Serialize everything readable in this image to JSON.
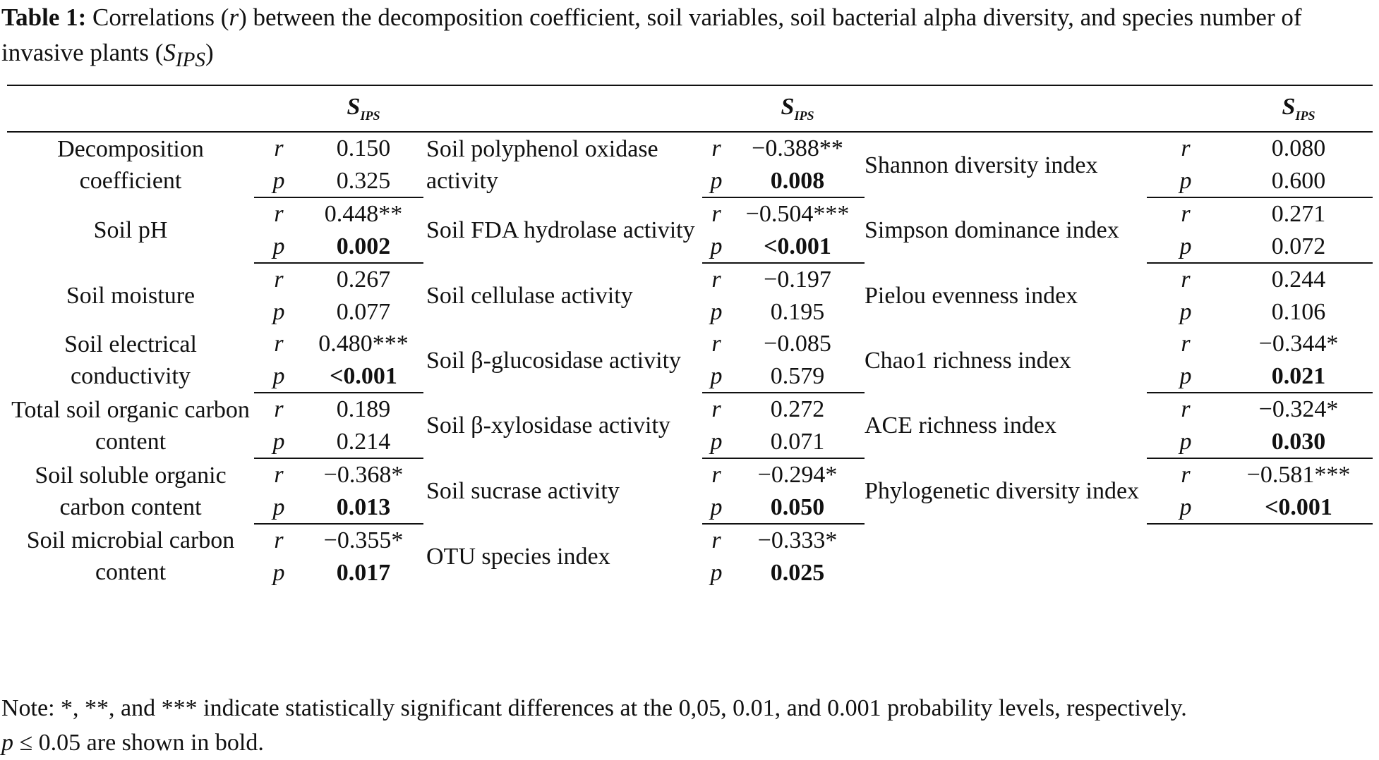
{
  "caption": {
    "label": "Table 1:",
    "text_before": " Correlations (",
    "r_symbol": "r",
    "text_after": ") between the decomposition coefficient, soil variables, soil bacterial alpha diversity, and species number of invasive plants (",
    "s_symbol": "S",
    "s_subscript": "IPS",
    "text_end": ")"
  },
  "header": {
    "s": "S",
    "sub": "IPS"
  },
  "groups": [
    [
      {
        "c1": {
          "name": "Decomposition coefficient",
          "r": "0.150",
          "p": "0.325",
          "p_sig": false
        },
        "c2": {
          "name": "Soil polyphenol oxidase activity",
          "r": "−0.388**",
          "p": "0.008",
          "p_sig": true
        },
        "c3": {
          "name": "Shannon diversity index",
          "r": "0.080",
          "p": "0.600",
          "p_sig": false
        }
      }
    ],
    [
      {
        "c1": {
          "name": "Soil pH",
          "r": "0.448**",
          "p": "0.002",
          "p_sig": true
        },
        "c2": {
          "name": "Soil FDA hydrolase activity",
          "r": "−0.504***",
          "p": "<0.001",
          "p_sig": true
        },
        "c3": {
          "name": "Simpson dominance index",
          "r": "0.271",
          "p": "0.072",
          "p_sig": false
        }
      }
    ],
    [
      {
        "c1": {
          "name": "Soil moisture",
          "r": "0.267",
          "p": "0.077",
          "p_sig": false
        },
        "c2": {
          "name": "Soil cellulase activity",
          "r": "−0.197",
          "p": "0.195",
          "p_sig": false
        },
        "c3": {
          "name": "Pielou evenness index",
          "r": "0.244",
          "p": "0.106",
          "p_sig": false
        }
      },
      {
        "c1": {
          "name": "Soil electrical conductivity",
          "r": "0.480***",
          "p": "<0.001",
          "p_sig": true
        },
        "c2": {
          "name": "Soil β-glucosidase activity",
          "r": "−0.085",
          "p": "0.579",
          "p_sig": false
        },
        "c3": {
          "name": "Chao1 richness index",
          "r": "−0.344*",
          "p": "0.021",
          "p_sig": true
        }
      }
    ],
    [
      {
        "c1": {
          "name": "Total soil organic carbon content",
          "r": "0.189",
          "p": "0.214",
          "p_sig": false
        },
        "c2": {
          "name": "Soil β-xylosidase activity",
          "r": "0.272",
          "p": "0.071",
          "p_sig": false
        },
        "c3": {
          "name": "ACE richness index",
          "r": "−0.324*",
          "p": "0.030",
          "p_sig": true
        }
      }
    ],
    [
      {
        "c1": {
          "name": "Soil soluble organic carbon content",
          "r": "−0.368*",
          "p": "0.013",
          "p_sig": true
        },
        "c2": {
          "name": "Soil sucrase activity",
          "r": "−0.294*",
          "p": "0.050",
          "p_sig": true
        },
        "c3": {
          "name": "Phylogenetic diversity index",
          "r": "−0.581***",
          "p": "<0.001",
          "p_sig": true
        }
      }
    ],
    [
      {
        "c1": {
          "name": "Soil microbial carbon content",
          "r": "−0.355*",
          "p": "0.017",
          "p_sig": true
        },
        "c2": {
          "name": "OTU species index",
          "r": "−0.333*",
          "p": "0.025",
          "p_sig": true
        },
        "c3": null
      }
    ]
  ],
  "note": {
    "line1": "Note: *, **, and *** indicate statistically significant differences at the 0,05, 0.01, and 0.001 probability levels, respectively.",
    "p_symbol": "p",
    "line2": " ≤ 0.05 are shown in bold."
  }
}
